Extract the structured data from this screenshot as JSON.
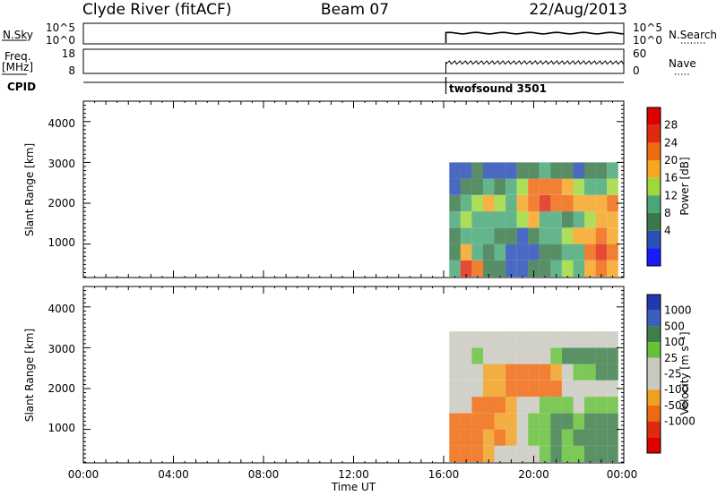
{
  "header": {
    "title_left": "Clyde River (fitACF)",
    "title_center": "Beam 07",
    "title_right": "22/Aug/2013"
  },
  "status_panels": {
    "nsky_label": "N.Sky",
    "nsky_ticks": [
      "10^5",
      "10^0"
    ],
    "nsearch_ticks": [
      "10^5",
      "10^0"
    ],
    "nsearch_label": "N.Search",
    "freq_label_line1": "Freq.",
    "freq_label_line2": "[MHz]",
    "freq_ticks": [
      "18",
      "8"
    ],
    "nave_ticks": [
      "60",
      "0"
    ],
    "nave_label": "Nave",
    "cpid_label": "CPID",
    "cpid_value": "twofsound 3501",
    "data_start_hour": 16.1
  },
  "x_axis": {
    "tick_labels": [
      "00:00",
      "04:00",
      "08:00",
      "12:00",
      "16:00",
      "20:00",
      "00:00"
    ],
    "label": "Time UT"
  },
  "power_panel": {
    "ylabel": "Slant Range [km]",
    "y_ticks": [
      "1000",
      "2000",
      "3000",
      "4000"
    ],
    "colorbar_title": "Power [dB]",
    "colorbar_ticks": [
      "4",
      "8",
      "12",
      "16",
      "20",
      "24",
      "28"
    ]
  },
  "velocity_panel": {
    "ylabel": "Slant Range [km]",
    "y_ticks": [
      "1000",
      "2000",
      "3000",
      "4000"
    ],
    "colorbar_title": "Velocity [m s⁻¹]",
    "colorbar_ticks": [
      "1000",
      "500",
      "100",
      "25",
      "-25",
      "-100",
      "-500",
      "-1000"
    ]
  },
  "colors": {
    "power_scale": [
      "#1a1aff",
      "#2a4fb8",
      "#3a7a4a",
      "#4aa878",
      "#9fd83c",
      "#f5a623",
      "#ee6a10",
      "#e02a10",
      "#dd0000"
    ],
    "velocity_scale": [
      "#2238b0",
      "#3b5fbf",
      "#3e7f4a",
      "#66c03a",
      "#c9c9c0",
      "#c9c9c0",
      "#f0a020",
      "#ee6a10",
      "#e02a10",
      "#dd0000"
    ]
  },
  "chart_data": [
    {
      "type": "heatmap",
      "title": "",
      "xlabel": "Time UT",
      "ylabel": "Slant Range [km]",
      "xlim": [
        0,
        24
      ],
      "ylim": [
        180,
        4500
      ],
      "colorbar_label": "Power [dB]",
      "color_range": [
        0,
        32
      ],
      "x": [
        16.5,
        17.0,
        17.5,
        18.0,
        18.5,
        19.0,
        19.5,
        20.0,
        20.5,
        21.0,
        21.5,
        22.0,
        22.5,
        23.0,
        23.5
      ],
      "y": [
        400,
        800,
        1200,
        1600,
        2000,
        2400,
        2800,
        3200
      ],
      "values": [
        [
          14,
          26,
          22,
          10,
          8,
          6,
          6,
          8,
          10,
          12,
          16,
          14,
          18,
          24,
          20
        ],
        [
          10,
          18,
          14,
          8,
          12,
          6,
          4,
          6,
          8,
          10,
          12,
          14,
          22,
          26,
          24
        ],
        [
          8,
          12,
          14,
          12,
          10,
          8,
          6,
          8,
          12,
          14,
          16,
          18,
          20,
          22,
          18
        ],
        [
          12,
          16,
          14,
          12,
          14,
          14,
          16,
          18,
          14,
          12,
          10,
          14,
          16,
          18,
          20
        ],
        [
          10,
          14,
          16,
          18,
          16,
          14,
          18,
          22,
          26,
          24,
          22,
          20,
          18,
          20,
          22
        ],
        [
          6,
          8,
          10,
          12,
          10,
          12,
          16,
          22,
          24,
          22,
          18,
          16,
          12,
          14,
          16
        ],
        [
          4,
          6,
          8,
          6,
          4,
          6,
          8,
          10,
          12,
          10,
          8,
          6,
          8,
          10,
          12
        ],
        [
          0,
          0,
          0,
          0,
          0,
          0,
          0,
          0,
          0,
          0,
          0,
          0,
          0,
          0,
          0
        ]
      ]
    },
    {
      "type": "heatmap",
      "title": "",
      "xlabel": "Time UT",
      "ylabel": "Slant Range [km]",
      "xlim": [
        0,
        24
      ],
      "ylim": [
        180,
        4500
      ],
      "colorbar_label": "Velocity [m s⁻¹]",
      "color_range": [
        -1000,
        1000
      ],
      "x": [
        16.5,
        17.0,
        17.5,
        18.0,
        18.5,
        19.0,
        19.5,
        20.0,
        20.5,
        21.0,
        21.5,
        22.0,
        22.5,
        23.0,
        23.5
      ],
      "y": [
        400,
        800,
        1200,
        1600,
        2000,
        2400,
        2800,
        3200
      ],
      "values": [
        [
          -200,
          -300,
          -150,
          -80,
          -20,
          0,
          20,
          10,
          40,
          100,
          60,
          80,
          150,
          120,
          100
        ],
        [
          -300,
          -400,
          -250,
          -100,
          -200,
          -50,
          20,
          40,
          60,
          120,
          80,
          100,
          200,
          150,
          120
        ],
        [
          -150,
          -200,
          -300,
          -200,
          -100,
          -50,
          10,
          60,
          80,
          100,
          120,
          80,
          100,
          150,
          120
        ],
        [
          10,
          -20,
          -150,
          -200,
          -150,
          -60,
          0,
          20,
          80,
          60,
          40,
          20,
          60,
          80,
          60
        ],
        [
          10,
          0,
          -20,
          -100,
          -50,
          -120,
          -200,
          -300,
          -250,
          -150,
          -20,
          10,
          20,
          0,
          10
        ],
        [
          0,
          0,
          10,
          -60,
          -100,
          -150,
          -200,
          -250,
          -200,
          -100,
          20,
          40,
          60,
          100,
          120
        ],
        [
          0,
          20,
          40,
          0,
          10,
          0,
          20,
          0,
          10,
          60,
          100,
          150,
          200,
          250,
          300
        ],
        [
          0,
          0,
          0,
          0,
          0,
          0,
          0,
          0,
          0,
          0,
          0,
          0,
          0,
          0,
          0
        ]
      ]
    }
  ]
}
